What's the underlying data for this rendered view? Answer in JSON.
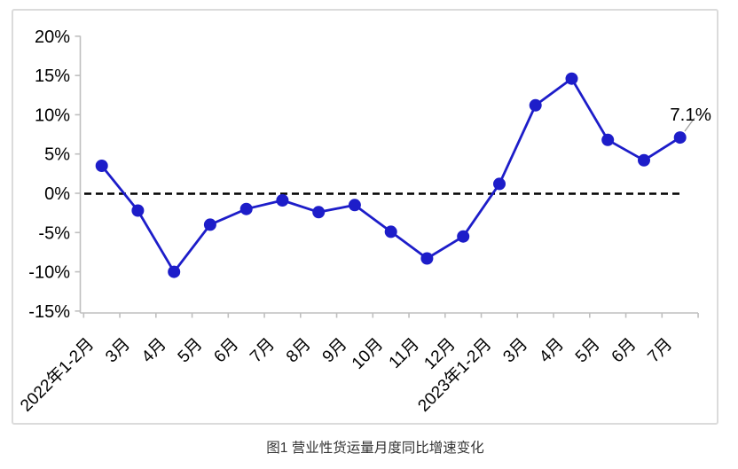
{
  "figure": {
    "caption": "图1 营业性货运量月度同比增速变化"
  },
  "chart_data": {
    "type": "line",
    "title": "图1 营业性货运量月度同比增速变化",
    "categories": [
      "2022年1-2月",
      "3月",
      "4月",
      "5月",
      "6月",
      "7月",
      "8月",
      "9月",
      "10月",
      "11月",
      "12月",
      "2023年1-2月",
      "3月",
      "4月",
      "5月",
      "6月",
      "7月"
    ],
    "values": [
      3.5,
      -2.2,
      -10.0,
      -4.0,
      -2.0,
      -0.9,
      -2.4,
      -1.5,
      -4.9,
      -8.3,
      -5.5,
      1.2,
      11.2,
      14.6,
      6.8,
      4.2,
      7.1
    ],
    "y_ticks": [
      "20%",
      "15%",
      "10%",
      "5%",
      "0%",
      "-5%",
      "-10%",
      "-15%"
    ],
    "y_tick_values": [
      20,
      15,
      10,
      5,
      0,
      -5,
      -10,
      -15
    ],
    "ylim": [
      -15,
      20
    ],
    "grid": "off",
    "legend": "none",
    "zero_line": {
      "style": "dashed",
      "color": "#000000"
    },
    "last_point_label": "7.1%",
    "colors": {
      "series": "#1d1dc9",
      "axis": "#bfbfbf",
      "border": "#dbdbdb",
      "leader_line": "#9e9e9e"
    }
  }
}
